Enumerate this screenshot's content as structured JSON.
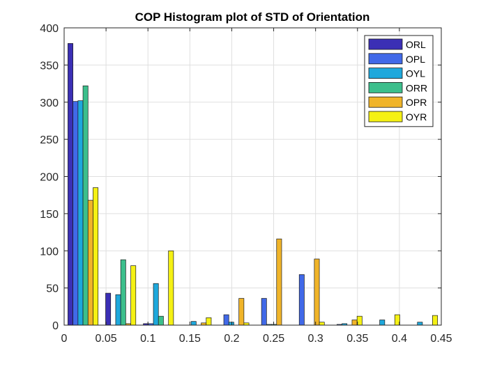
{
  "chart_data": {
    "type": "bar",
    "title": "COP Histogram plot of STD of Orientation",
    "xlabel": "",
    "ylabel": "",
    "xlim": [
      0,
      0.45
    ],
    "ylim": [
      0,
      400
    ],
    "xticks": [
      "0",
      "0.05",
      "0.1",
      "0.15",
      "0.2",
      "0.25",
      "0.3",
      "0.35",
      "0.4",
      "0.45"
    ],
    "yticks": [
      "0",
      "50",
      "100",
      "150",
      "200",
      "250",
      "300",
      "350",
      "400"
    ],
    "grid": true,
    "legend_position": "top-right",
    "bin_centers": [
      0.0225,
      0.0675,
      0.1125,
      0.1575,
      0.2025,
      0.2475,
      0.2925,
      0.3375,
      0.3825,
      0.4275
    ],
    "series": [
      {
        "name": "ORL",
        "color": "#3b2fb5",
        "values": [
          379,
          43,
          2,
          0,
          0,
          0,
          0,
          0,
          0,
          0
        ]
      },
      {
        "name": "OPL",
        "color": "#4169e8",
        "values": [
          301,
          0,
          2,
          0,
          14,
          36,
          68,
          1,
          0,
          0
        ]
      },
      {
        "name": "OYL",
        "color": "#1ea8dc",
        "values": [
          302,
          41,
          56,
          5,
          4,
          1,
          0,
          2,
          7,
          4
        ]
      },
      {
        "name": "ORR",
        "color": "#3cbf8c",
        "values": [
          322,
          88,
          12,
          0,
          0,
          1,
          0,
          0,
          0,
          0
        ]
      },
      {
        "name": "OPR",
        "color": "#f0b429",
        "values": [
          168,
          2,
          0,
          3,
          36,
          116,
          89,
          7,
          0,
          0
        ]
      },
      {
        "name": "OYR",
        "color": "#f5f114",
        "values": [
          185,
          80,
          100,
          10,
          3,
          0,
          4,
          12,
          14,
          13
        ]
      }
    ]
  }
}
